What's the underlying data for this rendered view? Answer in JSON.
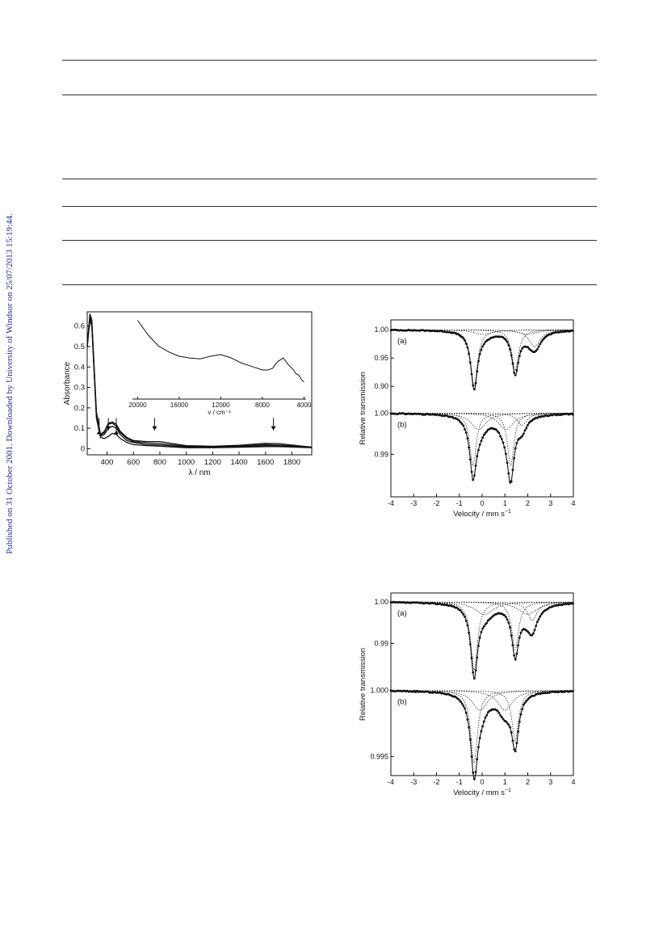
{
  "sidebar": {
    "text": "Published on 31 October 2001. Downloaded by University of Windsor on 25/07/2013 15:19:44."
  },
  "colors": {
    "sidebar": "#1e2ba6",
    "rule": "#333333",
    "ink": "#111111"
  },
  "chart_data": [
    {
      "id": "uvvis",
      "type": "line",
      "title": "",
      "xlabel": "λ / nm",
      "ylabel": "Absorbance",
      "xlim": [
        250,
        1950
      ],
      "ylim": [
        -0.03,
        0.67
      ],
      "xticks": [
        400,
        600,
        800,
        1000,
        1200,
        1400,
        1600,
        1800
      ],
      "yticks": [
        0,
        0.1,
        0.2,
        0.3,
        0.4,
        0.5,
        0.6
      ],
      "xtick_labels": [
        "400",
        "600",
        "800",
        "1000",
        "1200",
        "1400",
        "1600",
        "1800"
      ],
      "ytick_labels": [
        "0",
        "0.1",
        "0.2",
        "0.3",
        "0.4",
        "0.5",
        "0.6"
      ],
      "series": [
        {
          "x": [
            250,
            270,
            285,
            300,
            320,
            350,
            380,
            410,
            440,
            470,
            500,
            550,
            600,
            700,
            800,
            1000,
            1200,
            1400,
            1600,
            1700,
            1800,
            1950
          ],
          "y": [
            0.5,
            0.63,
            0.6,
            0.4,
            0.15,
            0.055,
            0.05,
            0.06,
            0.075,
            0.07,
            0.05,
            0.03,
            0.02,
            0.015,
            0.012,
            0.005,
            0.005,
            0.007,
            0.01,
            0.01,
            0.008,
            0.005
          ]
        },
        {
          "x": [
            250,
            270,
            285,
            300,
            320,
            350,
            380,
            410,
            440,
            470,
            500,
            550,
            600,
            700,
            800,
            1000,
            1200,
            1400,
            1600,
            1700,
            1800,
            1950
          ],
          "y": [
            0.5,
            0.64,
            0.61,
            0.41,
            0.16,
            0.06,
            0.07,
            0.1,
            0.11,
            0.1,
            0.07,
            0.04,
            0.03,
            0.02,
            0.018,
            0.008,
            0.008,
            0.01,
            0.015,
            0.014,
            0.011,
            0.006
          ]
        },
        {
          "x": [
            250,
            270,
            285,
            300,
            320,
            350,
            380,
            410,
            440,
            470,
            500,
            550,
            600,
            700,
            800,
            1000,
            1200,
            1400,
            1600,
            1700,
            1800,
            1950
          ],
          "y": [
            0.5,
            0.65,
            0.62,
            0.42,
            0.17,
            0.065,
            0.08,
            0.12,
            0.125,
            0.11,
            0.08,
            0.05,
            0.035,
            0.028,
            0.025,
            0.012,
            0.01,
            0.013,
            0.02,
            0.018,
            0.014,
            0.007
          ]
        },
        {
          "x": [
            250,
            270,
            285,
            300,
            320,
            350,
            380,
            410,
            440,
            470,
            500,
            550,
            600,
            700,
            800,
            1000,
            1200,
            1400,
            1600,
            1700,
            1800,
            1950
          ],
          "y": [
            0.5,
            0.66,
            0.63,
            0.43,
            0.18,
            0.07,
            0.085,
            0.125,
            0.13,
            0.12,
            0.085,
            0.055,
            0.04,
            0.035,
            0.035,
            0.015,
            0.012,
            0.017,
            0.026,
            0.025,
            0.018,
            0.008
          ]
        }
      ],
      "arrows": [
        {
          "x": 340,
          "direction": "up"
        },
        {
          "x": 410,
          "direction": "down"
        },
        {
          "x": 470,
          "direction": "up"
        },
        {
          "x": 760,
          "direction": "down"
        },
        {
          "x": 1660,
          "direction": "down"
        }
      ],
      "inset": {
        "type": "line",
        "xlabel": "ν / cm⁻¹",
        "xlim": [
          20500,
          3800
        ],
        "ylim": [
          0,
          1
        ],
        "xticks": [
          20000,
          16000,
          12000,
          8000,
          4000
        ],
        "xtick_labels": [
          "20000",
          "16000",
          "12000",
          "8000",
          "4000"
        ],
        "x": [
          20000,
          19000,
          18000,
          17000,
          16000,
          15000,
          14000,
          13000,
          12000,
          11000,
          10000,
          9000,
          8000,
          7500,
          7000,
          6800,
          6500,
          6000,
          5500,
          5000,
          4800,
          4500,
          4200,
          4000
        ],
        "y": [
          0.92,
          0.75,
          0.62,
          0.55,
          0.5,
          0.48,
          0.47,
          0.5,
          0.52,
          0.48,
          0.42,
          0.38,
          0.34,
          0.34,
          0.36,
          0.4,
          0.44,
          0.48,
          0.4,
          0.34,
          0.3,
          0.28,
          0.22,
          0.2
        ]
      }
    },
    {
      "id": "moss1",
      "type": "scatter",
      "xlabel": "Velocity / mm s",
      "xlabel_sup": "−1",
      "ylabel": "Relative transmission",
      "xlim": [
        -4,
        4
      ],
      "xticks": [
        -4,
        -3,
        -2,
        -1,
        0,
        1,
        2,
        3,
        4
      ],
      "xtick_labels": [
        "-4",
        "-3",
        "-2",
        "-1",
        "0",
        "1",
        "2",
        "3",
        "4"
      ],
      "panels": [
        {
          "label": "(a)",
          "ylim": [
            0.878,
            1.006
          ],
          "yticks": [
            1.0,
            0.95,
            0.9
          ],
          "ytick_labels": [
            "1.00",
            "0.95",
            "0.90"
          ],
          "lines": [
            {
              "center": -0.35,
              "depth": 0.1,
              "width": 0.36
            },
            {
              "center": 1.45,
              "depth": 0.072,
              "width": 0.36
            },
            {
              "center": 2.3,
              "depth": 0.03,
              "width": 0.6
            },
            {
              "center": 0.05,
              "depth": 0.008,
              "width": 1.0
            },
            {
              "center": 2.0,
              "depth": 0.008,
              "width": 1.0
            }
          ]
        },
        {
          "label": "(b)",
          "ylim": [
            0.9805,
            1.0015
          ],
          "yticks": [
            1.0,
            0.99
          ],
          "ytick_labels": [
            "1.00",
            "0.99"
          ],
          "lines": [
            {
              "center": -0.4,
              "depth": 0.0128,
              "width": 0.34
            },
            {
              "center": 1.25,
              "depth": 0.0128,
              "width": 0.34
            },
            {
              "center": 1.75,
              "depth": 0.003,
              "width": 0.5
            },
            {
              "center": -0.15,
              "depth": 0.004,
              "width": 0.8
            },
            {
              "center": 1.05,
              "depth": 0.004,
              "width": 0.8
            }
          ]
        }
      ]
    },
    {
      "id": "moss2",
      "type": "scatter",
      "xlabel": "Velocity / mm s",
      "xlabel_sup": "−1",
      "ylabel": "Relative transmission",
      "xlim": [
        -4,
        4
      ],
      "xticks": [
        -4,
        -3,
        -2,
        -1,
        0,
        1,
        2,
        3,
        4
      ],
      "xtick_labels": [
        "-4",
        "-3",
        "-2",
        "-1",
        "0",
        "1",
        "2",
        "3",
        "4"
      ],
      "panels": [
        {
          "label": "(a)",
          "ylim": [
            0.9825,
            1.0006
          ],
          "yticks": [
            1.0,
            0.99
          ],
          "ytick_labels": [
            "1.00",
            "0.99"
          ],
          "lines": [
            {
              "center": -0.35,
              "depth": 0.0165,
              "width": 0.36
            },
            {
              "center": 1.45,
              "depth": 0.0115,
              "width": 0.36
            },
            {
              "center": 2.2,
              "depth": 0.0045,
              "width": 0.5
            },
            {
              "center": 0.1,
              "depth": 0.003,
              "width": 1.0
            },
            {
              "center": 2.0,
              "depth": 0.003,
              "width": 1.0
            }
          ]
        },
        {
          "label": "(b)",
          "ylim": [
            0.9938,
            1.0006
          ],
          "yticks": [
            1.0,
            0.995
          ],
          "ytick_labels": [
            "1.000",
            "0.995"
          ],
          "lines": [
            {
              "center": -0.35,
              "depth": 0.0055,
              "width": 0.36
            },
            {
              "center": 1.45,
              "depth": 0.0038,
              "width": 0.36
            },
            {
              "center": 1.0,
              "depth": 0.0015,
              "width": 0.8
            },
            {
              "center": -0.1,
              "depth": 0.0015,
              "width": 0.8
            }
          ]
        }
      ]
    }
  ]
}
